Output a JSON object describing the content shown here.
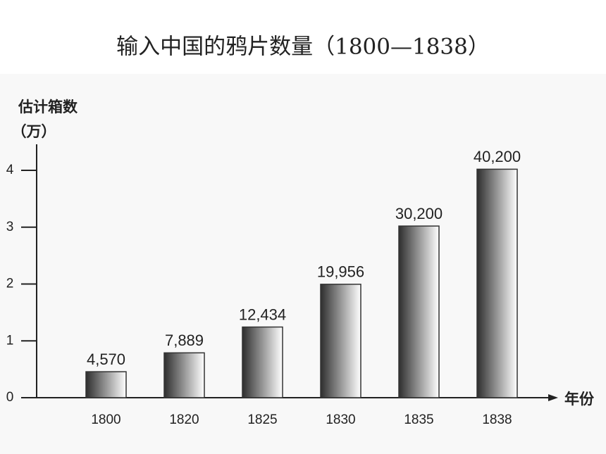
{
  "chart_data": {
    "type": "bar",
    "title": "输入中国的鸦片数量（1800—1838）",
    "ylabel": [
      "估计箱数",
      "（万）"
    ],
    "xlabel": "年份",
    "categories": [
      "1800",
      "1820",
      "1825",
      "1830",
      "1835",
      "1838"
    ],
    "values": [
      0.457,
      0.7889,
      1.2434,
      1.9956,
      3.02,
      4.02
    ],
    "value_labels": [
      "4,570",
      "7,889",
      "12,434",
      "19,956",
      "30,200",
      "40,200"
    ],
    "color": "#333333",
    "ylim": [
      0,
      4.45
    ],
    "yticks": [
      0,
      1,
      2,
      3,
      4
    ],
    "grid": false
  }
}
